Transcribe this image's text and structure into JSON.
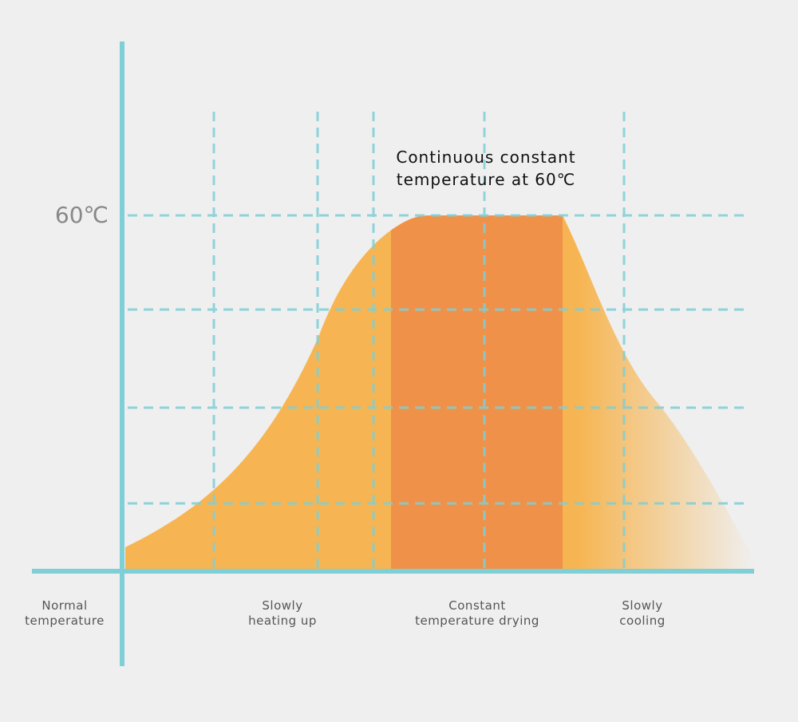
{
  "y_axis_label": "60℃",
  "annotation": [
    "Continuous constant",
    "temperature at 60℃"
  ],
  "stages": [
    {
      "lines": [
        "Normal",
        "temperature"
      ]
    },
    {
      "lines": [
        "Slowly",
        "heating up"
      ]
    },
    {
      "lines": [
        "Constant",
        "temperature drying"
      ]
    },
    {
      "lines": [
        "Slowly",
        "cooling"
      ]
    }
  ]
}
